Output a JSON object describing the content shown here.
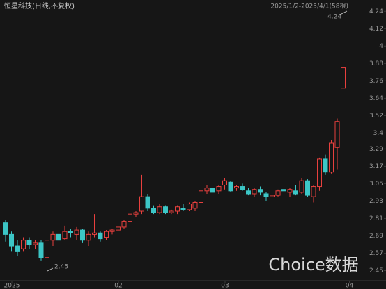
{
  "chart_data": {
    "type": "candlestick",
    "title": "恒星科技(日线,不复权)",
    "subtitle": "2025/1/2-2025/4/1(58根)",
    "watermark": "Choice数据",
    "categories": [
      "2025",
      null,
      null,
      null,
      null,
      null,
      null,
      null,
      null,
      null,
      null,
      null,
      null,
      null,
      null,
      null,
      null,
      null,
      "02",
      null,
      null,
      null,
      null,
      null,
      null,
      null,
      null,
      null,
      null,
      null,
      null,
      null,
      null,
      null,
      null,
      null,
      "03",
      null,
      null,
      null,
      null,
      null,
      null,
      null,
      null,
      null,
      null,
      null,
      null,
      null,
      null,
      null,
      null,
      null,
      null,
      null,
      null,
      "04"
    ],
    "open": [
      2.78,
      2.7,
      2.62,
      2.6,
      2.66,
      2.63,
      2.64,
      2.54,
      2.66,
      2.7,
      2.67,
      2.72,
      2.7,
      2.73,
      2.66,
      2.7,
      2.71,
      2.68,
      2.72,
      2.73,
      2.75,
      2.79,
      2.84,
      2.86,
      2.96,
      2.88,
      2.85,
      2.89,
      2.85,
      2.86,
      2.88,
      2.87,
      2.88,
      2.92,
      3.0,
      3.02,
      3.0,
      3.04,
      3.06,
      3.02,
      3.03,
      3.0,
      2.98,
      3.01,
      2.98,
      2.96,
      2.97,
      3.01,
      2.99,
      3.0,
      2.99,
      3.07,
      2.96,
      3.03,
      3.22,
      3.13,
      3.3,
      3.71
    ],
    "high": [
      2.8,
      2.72,
      2.66,
      2.68,
      2.68,
      2.66,
      2.66,
      2.68,
      2.72,
      2.72,
      2.76,
      2.74,
      2.75,
      2.74,
      2.72,
      2.84,
      2.72,
      2.73,
      2.74,
      2.76,
      2.8,
      2.85,
      2.86,
      3.11,
      2.98,
      2.9,
      2.91,
      2.9,
      2.87,
      2.9,
      2.91,
      2.92,
      2.93,
      3.01,
      3.04,
      3.05,
      3.04,
      3.09,
      3.07,
      3.04,
      3.05,
      3.02,
      3.02,
      3.03,
      2.99,
      2.98,
      3.01,
      3.03,
      3.02,
      3.04,
      3.09,
      3.08,
      3.04,
      3.23,
      3.25,
      3.35,
      3.5,
      3.86
    ],
    "low": [
      2.65,
      2.58,
      2.55,
      2.58,
      2.6,
      2.6,
      2.52,
      2.45,
      2.62,
      2.64,
      2.66,
      2.68,
      2.66,
      2.64,
      2.62,
      2.68,
      2.65,
      2.66,
      2.7,
      2.7,
      2.74,
      2.78,
      2.82,
      2.84,
      2.86,
      2.84,
      2.84,
      2.84,
      2.84,
      2.84,
      2.86,
      2.86,
      2.86,
      2.91,
      2.98,
      2.97,
      2.98,
      3.01,
      2.99,
      3.0,
      3.0,
      2.97,
      2.96,
      2.97,
      2.93,
      2.93,
      2.96,
      2.99,
      2.96,
      2.97,
      2.98,
      2.96,
      2.92,
      3.0,
      3.11,
      3.12,
      3.15,
      3.68
    ],
    "close": [
      2.7,
      2.62,
      2.58,
      2.66,
      2.63,
      2.64,
      2.54,
      2.66,
      2.7,
      2.66,
      2.72,
      2.71,
      2.73,
      2.66,
      2.7,
      2.71,
      2.67,
      2.72,
      2.73,
      2.75,
      2.79,
      2.84,
      2.85,
      2.96,
      2.88,
      2.85,
      2.89,
      2.85,
      2.86,
      2.89,
      2.87,
      2.91,
      2.92,
      3.0,
      3.02,
      2.99,
      3.03,
      3.07,
      3.0,
      3.03,
      3.01,
      2.98,
      3.01,
      2.99,
      2.96,
      2.97,
      3.0,
      3.0,
      3.01,
      2.98,
      3.07,
      2.97,
      3.03,
      3.22,
      3.13,
      3.33,
      3.48,
      3.85
    ],
    "up_color": "#e8403e",
    "down_color": "#3cc6c6",
    "ylim": [
      2.39,
      4.27
    ],
    "yticks": [
      2.45,
      2.57,
      2.69,
      2.81,
      2.93,
      3.05,
      3.17,
      3.29,
      3.4,
      3.52,
      3.64,
      3.76,
      3.88,
      4.0,
      4.12,
      4.24
    ],
    "grid": false,
    "annotations": [
      "2.45",
      "4.24"
    ]
  }
}
